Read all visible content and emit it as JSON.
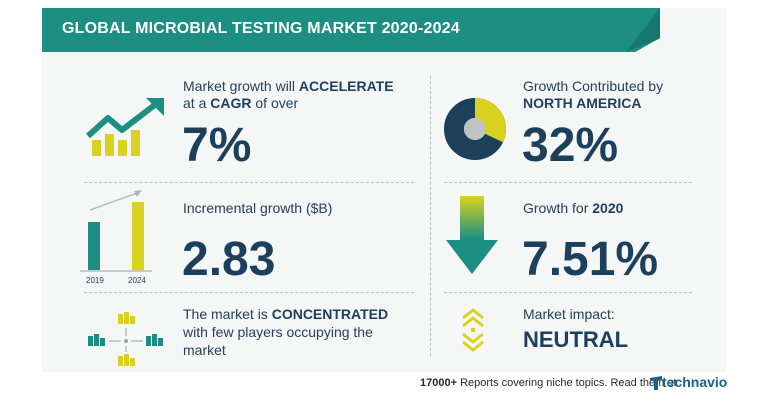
{
  "title": "GLOBAL MICROBIAL TESTING MARKET 2020-2024",
  "cagr": {
    "line1_pre": "Market growth will ",
    "line1_bold": "ACCELERATE",
    "line2_pre": "at a ",
    "line2_bold": "CAGR",
    "line2_post": " of over",
    "value": "7%"
  },
  "incremental": {
    "label": "Incremental growth ($B)",
    "value": "2.83",
    "bar_labels": [
      "2019",
      "2024"
    ]
  },
  "concentration": {
    "line1_pre": "The market is ",
    "line1_bold": "CONCENTRATED",
    "line2": "with few players occupying the",
    "line3": "market"
  },
  "region": {
    "line1": "Growth Contributed by",
    "line2": "NORTH AMERICA",
    "value": "32%",
    "share": 0.32
  },
  "growth2020": {
    "label_pre": "Growth for ",
    "label_year": "2020",
    "value": "7.51%"
  },
  "impact": {
    "label": "Market impact:",
    "value": "NEUTRAL"
  },
  "footer": {
    "count": "17000+",
    "text": " Reports covering niche topics. Read them at",
    "brand": "technavio"
  },
  "colors": {
    "teal": "#1d8f82",
    "yellow": "#d9d21f",
    "navy": "#1c3f5c",
    "gray": "#bfc3c4"
  },
  "icons": [
    "growth-chart-icon",
    "bar-growth-icon",
    "market-players-icon",
    "donut-share-icon",
    "down-arrow-icon",
    "neutral-arrows-icon",
    "technavio-logo-icon"
  ]
}
